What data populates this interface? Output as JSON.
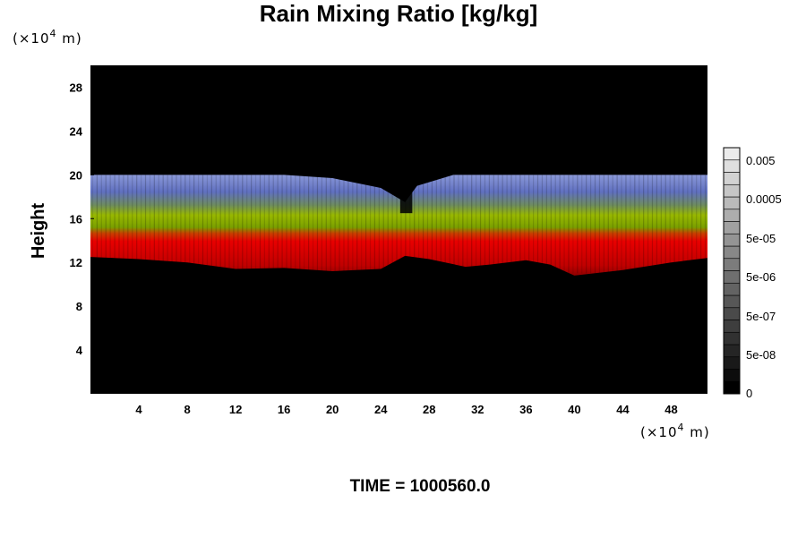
{
  "chart_data": {
    "type": "heatmap",
    "title": "Rain Mixing Ratio [kg/kg]",
    "xlabel": "",
    "ylabel": "Height",
    "x_scale_label": "(×10",
    "x_scale_exp": "4",
    "x_scale_unit": " m)",
    "y_scale_label": "(×10",
    "y_scale_exp": "4",
    "y_scale_unit": " m)",
    "xlim": [
      0,
      51
    ],
    "ylim": [
      0,
      30
    ],
    "x_ticks": [
      4,
      8,
      12,
      16,
      20,
      24,
      28,
      32,
      36,
      40,
      44,
      48
    ],
    "y_ticks": [
      4,
      8,
      12,
      16,
      20,
      24,
      28
    ],
    "colorbar": {
      "labels": [
        "0.005",
        "0.0005",
        "5e-05",
        "5e-06",
        "5e-07",
        "5e-08",
        "0"
      ],
      "levels": 20
    },
    "field": {
      "layers": [
        {
          "name": "top",
          "color": "#7080c8",
          "approx_top": 20
        },
        {
          "name": "middle",
          "color": "#88b000",
          "approx_top": 17
        },
        {
          "name": "lower",
          "color": "#e00000",
          "approx_top": 14
        }
      ],
      "cloud_base": [
        [
          0,
          12.5
        ],
        [
          4,
          12.3
        ],
        [
          8,
          12.0
        ],
        [
          12,
          11.4
        ],
        [
          16,
          11.5
        ],
        [
          20,
          11.2
        ],
        [
          24,
          11.4
        ],
        [
          26,
          12.6
        ],
        [
          28,
          12.3
        ],
        [
          31,
          11.6
        ],
        [
          33,
          11.8
        ],
        [
          36,
          12.2
        ],
        [
          38,
          11.8
        ],
        [
          40,
          10.8
        ],
        [
          44,
          11.3
        ],
        [
          48,
          12.0
        ],
        [
          51,
          12.4
        ]
      ],
      "cloud_top": [
        [
          0,
          20.0
        ],
        [
          4,
          20.0
        ],
        [
          8,
          20.0
        ],
        [
          12,
          20.0
        ],
        [
          16,
          20.0
        ],
        [
          20,
          19.7
        ],
        [
          24,
          18.8
        ],
        [
          26,
          17.5
        ],
        [
          27,
          19.0
        ],
        [
          30,
          20.0
        ],
        [
          36,
          20.0
        ],
        [
          40,
          20.0
        ],
        [
          44,
          20.0
        ],
        [
          48,
          20.0
        ],
        [
          51,
          20.0
        ]
      ]
    }
  },
  "footer": {
    "time_label": "TIME = 1000560.0"
  }
}
